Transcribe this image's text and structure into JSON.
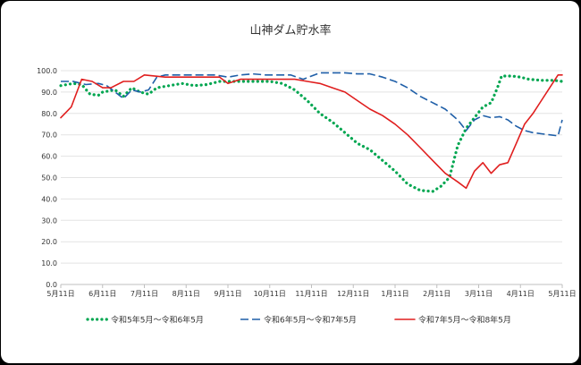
{
  "chart_data": {
    "type": "line",
    "title": "山神ダム貯水率",
    "xlabel": "",
    "ylabel": "",
    "ylim": [
      0,
      100
    ],
    "yticks": [
      "0.0",
      "10.0",
      "20.0",
      "30.0",
      "40.0",
      "50.0",
      "60.0",
      "70.0",
      "80.0",
      "90.0",
      "100.0"
    ],
    "x_tick_labels": [
      "5月11日",
      "6月11日",
      "7月11日",
      "8月11日",
      "9月11日",
      "10月11日",
      "11月11日",
      "12月11日",
      "1月11日",
      "2月11日",
      "3月11日",
      "4月11日",
      "5月11日"
    ],
    "x_unit": "months since May 11",
    "grid": "horizontal",
    "legend_position": "bottom",
    "series": [
      {
        "name": "令和5年5月～令和6年5月",
        "color": "#00a650",
        "style": "dotted",
        "points": [
          [
            0,
            93
          ],
          [
            0.3,
            94
          ],
          [
            0.5,
            93.5
          ],
          [
            0.7,
            89
          ],
          [
            0.9,
            88.5
          ],
          [
            1.0,
            90
          ],
          [
            1.3,
            91
          ],
          [
            1.5,
            88
          ],
          [
            1.7,
            92
          ],
          [
            1.9,
            90
          ],
          [
            2.1,
            89
          ],
          [
            2.3,
            92
          ],
          [
            2.6,
            93
          ],
          [
            2.9,
            94
          ],
          [
            3.2,
            93
          ],
          [
            3.5,
            93.5
          ],
          [
            3.8,
            95
          ],
          [
            4.2,
            95
          ],
          [
            4.6,
            95
          ],
          [
            5.0,
            95
          ],
          [
            5.3,
            94
          ],
          [
            5.6,
            91
          ],
          [
            5.9,
            86
          ],
          [
            6.2,
            80
          ],
          [
            6.5,
            76
          ],
          [
            6.8,
            71
          ],
          [
            7.1,
            66
          ],
          [
            7.4,
            63
          ],
          [
            7.7,
            58
          ],
          [
            8.0,
            53
          ],
          [
            8.3,
            47
          ],
          [
            8.6,
            44
          ],
          [
            8.9,
            43.5
          ],
          [
            9.1,
            46
          ],
          [
            9.3,
            50
          ],
          [
            9.5,
            65
          ],
          [
            9.7,
            73
          ],
          [
            9.9,
            78
          ],
          [
            10.1,
            83
          ],
          [
            10.3,
            85
          ],
          [
            10.45,
            92
          ],
          [
            10.55,
            97.5
          ],
          [
            10.8,
            97.5
          ],
          [
            11.0,
            97
          ],
          [
            11.2,
            96
          ],
          [
            11.5,
            95.5
          ],
          [
            11.8,
            95.5
          ],
          [
            12.0,
            95
          ]
        ]
      },
      {
        "name": "令和6年5月～令和7年5月",
        "color": "#1f5fa8",
        "style": "dashed",
        "points": [
          [
            0,
            95
          ],
          [
            0.3,
            95
          ],
          [
            0.6,
            93.5
          ],
          [
            0.9,
            94
          ],
          [
            1.1,
            93
          ],
          [
            1.3,
            90
          ],
          [
            1.5,
            87
          ],
          [
            1.7,
            91
          ],
          [
            1.9,
            90
          ],
          [
            2.1,
            91
          ],
          [
            2.3,
            97
          ],
          [
            2.5,
            98
          ],
          [
            2.8,
            98
          ],
          [
            3.1,
            98
          ],
          [
            3.4,
            98
          ],
          [
            3.7,
            98
          ],
          [
            4.0,
            97
          ],
          [
            4.3,
            98
          ],
          [
            4.6,
            98.5
          ],
          [
            4.9,
            98
          ],
          [
            5.2,
            98
          ],
          [
            5.5,
            98
          ],
          [
            5.8,
            96
          ],
          [
            6.0,
            97.5
          ],
          [
            6.2,
            99
          ],
          [
            6.5,
            99
          ],
          [
            6.8,
            99
          ],
          [
            7.1,
            98.5
          ],
          [
            7.4,
            98.5
          ],
          [
            7.7,
            97
          ],
          [
            8.0,
            95
          ],
          [
            8.3,
            92
          ],
          [
            8.6,
            88
          ],
          [
            8.9,
            85
          ],
          [
            9.2,
            82
          ],
          [
            9.5,
            77
          ],
          [
            9.7,
            72
          ],
          [
            9.9,
            77
          ],
          [
            10.1,
            79
          ],
          [
            10.3,
            78
          ],
          [
            10.5,
            78.5
          ],
          [
            10.7,
            77
          ],
          [
            10.9,
            74
          ],
          [
            11.1,
            72
          ],
          [
            11.3,
            71
          ],
          [
            11.5,
            70.5
          ],
          [
            11.7,
            70
          ],
          [
            11.9,
            69.5
          ],
          [
            12.0,
            77
          ]
        ]
      },
      {
        "name": "令和7年5月～令和8年5月",
        "color": "#e01e1e",
        "style": "solid",
        "points": [
          [
            0,
            78
          ],
          [
            0.25,
            83
          ],
          [
            0.5,
            96
          ],
          [
            0.75,
            95
          ],
          [
            1.0,
            92
          ],
          [
            1.2,
            92
          ],
          [
            1.5,
            95
          ],
          [
            1.75,
            95
          ],
          [
            2.0,
            98
          ],
          [
            2.5,
            97
          ],
          [
            3.0,
            97
          ],
          [
            3.5,
            97
          ],
          [
            3.8,
            97
          ],
          [
            4.0,
            94
          ],
          [
            4.3,
            96
          ],
          [
            4.6,
            96
          ],
          [
            5.0,
            96
          ],
          [
            5.3,
            96
          ],
          [
            5.6,
            96
          ],
          [
            5.9,
            95
          ],
          [
            6.2,
            94
          ],
          [
            6.5,
            92
          ],
          [
            6.8,
            90
          ],
          [
            7.1,
            86
          ],
          [
            7.4,
            82
          ],
          [
            7.7,
            79
          ],
          [
            8.0,
            75
          ],
          [
            8.3,
            70
          ],
          [
            8.6,
            64
          ],
          [
            8.9,
            58
          ],
          [
            9.2,
            52
          ],
          [
            9.5,
            48
          ],
          [
            9.7,
            45
          ],
          [
            9.9,
            53
          ],
          [
            10.1,
            57
          ],
          [
            10.3,
            52
          ],
          [
            10.5,
            56
          ],
          [
            10.7,
            57
          ],
          [
            10.9,
            66
          ],
          [
            11.1,
            75
          ],
          [
            11.3,
            80
          ],
          [
            11.5,
            86
          ],
          [
            11.7,
            92
          ],
          [
            11.9,
            98
          ],
          [
            12.0,
            98
          ]
        ]
      }
    ]
  }
}
